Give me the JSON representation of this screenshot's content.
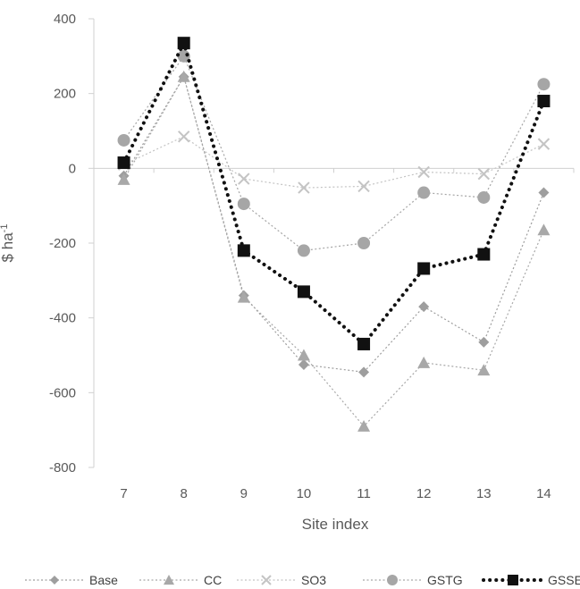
{
  "chart_data": {
    "type": "line",
    "title": "",
    "xlabel": "Site index",
    "ylabel": "$ ha",
    "ylabel_sup": "-1",
    "x": [
      7,
      8,
      9,
      10,
      11,
      12,
      13,
      14
    ],
    "x_tick_labels": [
      "7",
      "8",
      "9",
      "10",
      "11",
      "12",
      "13",
      "14"
    ],
    "ylim": [
      -800,
      400
    ],
    "y_ticks": [
      400,
      200,
      0,
      -200,
      -400,
      -600,
      -800
    ],
    "y_tick_labels": [
      "400",
      "200",
      "0",
      "-200",
      "-400",
      "-600",
      "-800"
    ],
    "grid": false,
    "legend_position": "bottom",
    "series": [
      {
        "name": "Base",
        "marker": "diamond",
        "color": "#9e9e9e",
        "line_style": "dotted-thin",
        "values": [
          -20,
          245,
          -340,
          -525,
          -545,
          -370,
          -465,
          -65
        ]
      },
      {
        "name": "CC",
        "marker": "triangle",
        "color": "#a8a8a8",
        "line_style": "dotted-thin",
        "values": [
          -30,
          245,
          -345,
          -500,
          -690,
          -520,
          -540,
          -165
        ]
      },
      {
        "name": "SO3",
        "marker": "cross",
        "color": "#c4c4c4",
        "line_style": "dotted-thin",
        "values": [
          10,
          85,
          -28,
          -52,
          -48,
          -10,
          -15,
          65
        ]
      },
      {
        "name": "GSTG",
        "marker": "circle",
        "color": "#a6a6a6",
        "line_style": "dotted-thin",
        "values": [
          75,
          300,
          -95,
          -220,
          -200,
          -65,
          -78,
          225
        ]
      },
      {
        "name": "GSSE",
        "marker": "square",
        "color": "#111111",
        "line_style": "dotted-bold",
        "values": [
          15,
          335,
          -220,
          -330,
          -470,
          -268,
          -230,
          180
        ]
      }
    ]
  }
}
